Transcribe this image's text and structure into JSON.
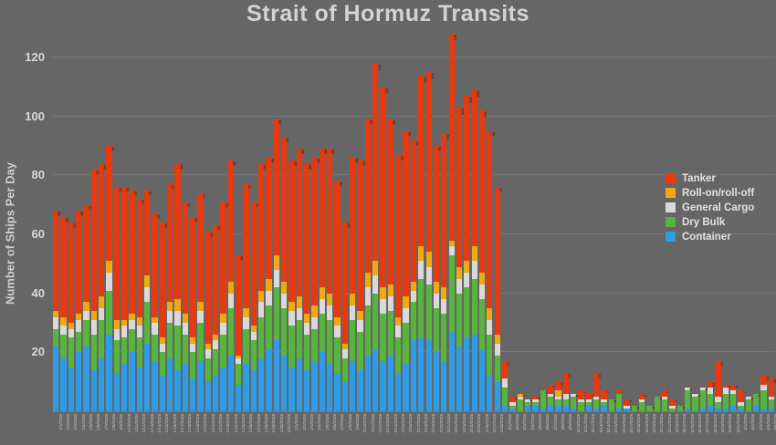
{
  "chart_data": {
    "type": "bar",
    "stacked": true,
    "title": "Strait of Hormuz Transits",
    "xlabel": "",
    "ylabel": "Number of Ships Per Day",
    "yticks": [
      20,
      40,
      60,
      80,
      100,
      120
    ],
    "ylim": [
      0,
      130
    ],
    "grid": "horizontal",
    "legend": {
      "position": "right",
      "items": [
        "Tanker",
        "Roll-on/roll-off",
        "General Cargo",
        "Dry Bulk",
        "Container"
      ]
    },
    "x": [
      "1/1/2026",
      "1/2/2026",
      "1/3/2026",
      "1/4/2026",
      "1/5/2026",
      "1/6/2026",
      "1/7/2026",
      "1/8/2026",
      "1/9/2026",
      "1/10/2026",
      "1/11/2026",
      "1/12/2026",
      "1/13/2026",
      "1/14/2026",
      "1/15/2026",
      "1/16/2026",
      "1/17/2026",
      "1/18/2026",
      "1/19/2026",
      "1/20/2026",
      "1/21/2026",
      "1/22/2026",
      "1/23/2026",
      "1/24/2026",
      "1/25/2026",
      "1/26/2026",
      "1/27/2026",
      "1/28/2026",
      "1/29/2026",
      "1/30/2026",
      "1/31/2026",
      "2/1/2026",
      "2/2/2026",
      "2/3/2026",
      "2/4/2026",
      "2/5/2026",
      "2/6/2026",
      "2/7/2026",
      "2/8/2026",
      "2/9/2026",
      "2/10/2026",
      "2/11/2026",
      "2/12/2026",
      "2/13/2026",
      "2/14/2026",
      "2/15/2026",
      "2/16/2026",
      "2/17/2026",
      "2/18/2026",
      "2/19/2026",
      "2/20/2026",
      "2/21/2026",
      "2/22/2026",
      "2/23/2026",
      "2/24/2026",
      "2/25/2026",
      "2/26/2026",
      "2/27/2026",
      "2/28/2026",
      "3/1/2026",
      "3/2/2026",
      "3/3/2026",
      "3/4/2026",
      "3/5/2026",
      "3/6/2026",
      "3/7/2026",
      "3/8/2026",
      "3/9/2026",
      "3/10/2026",
      "3/11/2026",
      "3/12/2026",
      "3/13/2026",
      "3/14/2026",
      "3/15/2026",
      "3/16/2026",
      "3/17/2026",
      "3/18/2026",
      "3/19/2026",
      "3/20/2026",
      "3/21/2026",
      "3/22/2026",
      "3/23/2026",
      "3/24/2026",
      "3/25/2026",
      "3/26/2026",
      "3/27/2026",
      "3/28/2026",
      "3/29/2026",
      "3/30/2026",
      "3/31/2026",
      "4/1/2026",
      "4/2/2026",
      "4/3/2026",
      "4/4/2026",
      "4/5/2026"
    ],
    "series": [
      {
        "name": "Container",
        "color": "#2E9CE6",
        "values": [
          22,
          18,
          15,
          20,
          22,
          14,
          18,
          26,
          13,
          16,
          20,
          15,
          23,
          17,
          12,
          18,
          14,
          16,
          11,
          17,
          10,
          12,
          15,
          19,
          9,
          16,
          14,
          18,
          21,
          24,
          19,
          15,
          18,
          14,
          17,
          20,
          16,
          13,
          10,
          17,
          14,
          19,
          21,
          17,
          19,
          13,
          16,
          24,
          25,
          24,
          20,
          17,
          27,
          22,
          25,
          26,
          21,
          12,
          10,
          2,
          1,
          0,
          2,
          2,
          1,
          2,
          2,
          2,
          1,
          0,
          2,
          1,
          2,
          0,
          1,
          1,
          0,
          0,
          0,
          0,
          0,
          0,
          0,
          1,
          0,
          1,
          2,
          1,
          1,
          2,
          1,
          0,
          2,
          1,
          1
        ]
      },
      {
        "name": "Dry Bulk",
        "color": "#57B43C",
        "values": [
          6,
          8,
          10,
          7,
          9,
          12,
          13,
          15,
          11,
          9,
          8,
          10,
          14,
          9,
          8,
          12,
          15,
          10,
          9,
          13,
          8,
          9,
          11,
          16,
          7,
          12,
          10,
          14,
          15,
          18,
          16,
          14,
          13,
          12,
          11,
          13,
          15,
          12,
          8,
          14,
          13,
          17,
          19,
          16,
          15,
          12,
          14,
          13,
          20,
          19,
          15,
          16,
          26,
          18,
          17,
          19,
          17,
          14,
          9,
          6,
          1,
          4,
          1,
          1,
          6,
          3,
          2,
          2,
          4,
          3,
          1,
          3,
          1,
          4,
          5,
          0,
          2,
          3,
          2,
          5,
          4,
          1,
          2,
          6,
          5,
          6,
          4,
          2,
          5,
          4,
          1,
          4,
          4,
          6,
          3
        ]
      },
      {
        "name": "General Cargo",
        "color": "#D9D9D9",
        "values": [
          4,
          3,
          3,
          4,
          3,
          5,
          4,
          6,
          4,
          4,
          3,
          4,
          5,
          4,
          3,
          4,
          5,
          4,
          3,
          4,
          3,
          3,
          4,
          5,
          2,
          4,
          3,
          5,
          5,
          6,
          5,
          5,
          4,
          4,
          4,
          5,
          5,
          4,
          3,
          5,
          4,
          6,
          6,
          5,
          5,
          4,
          5,
          4,
          6,
          6,
          5,
          5,
          3,
          5,
          5,
          6,
          5,
          5,
          4,
          3,
          1,
          1,
          1,
          1,
          0,
          1,
          1,
          2,
          1,
          1,
          1,
          1,
          1,
          0,
          0,
          1,
          0,
          1,
          0,
          0,
          1,
          1,
          0,
          1,
          1,
          1,
          2,
          2,
          2,
          1,
          1,
          1,
          0,
          2,
          1
        ]
      },
      {
        "name": "Roll-on/roll-off",
        "color": "#F0A813",
        "values": [
          2,
          3,
          2,
          2,
          3,
          3,
          4,
          4,
          3,
          2,
          2,
          3,
          4,
          2,
          2,
          3,
          4,
          3,
          2,
          3,
          2,
          2,
          3,
          4,
          1,
          3,
          2,
          4,
          4,
          5,
          4,
          3,
          4,
          3,
          4,
          4,
          4,
          3,
          2,
          4,
          3,
          5,
          5,
          4,
          4,
          3,
          4,
          3,
          5,
          5,
          4,
          4,
          2,
          4,
          4,
          5,
          4,
          4,
          3,
          0,
          0,
          1,
          0,
          0,
          0,
          0,
          2,
          0,
          0,
          0,
          0,
          0,
          0,
          0,
          0,
          0,
          0,
          0,
          0,
          0,
          0,
          0,
          0,
          0,
          0,
          0,
          0,
          0,
          0,
          0,
          0,
          0,
          0,
          0,
          0
        ]
      },
      {
        "name": "Tanker",
        "color": "#E8380D",
        "values": [
          34,
          34,
          34,
          35,
          33,
          48,
          45,
          39,
          45,
          45,
          42,
          40,
          29,
          35,
          39,
          40,
          46,
          38,
          41,
          37,
          38,
          37,
          38,
          41,
          34,
          42,
          42,
          43,
          41,
          46,
          49,
          48,
          50,
          51,
          50,
          47,
          49,
          46,
          41,
          46,
          51,
          52,
          67,
          68,
          56,
          55,
          56,
          48,
          58,
          61,
          46,
          52,
          70,
          54,
          56,
          53,
          55,
          60,
          50,
          6,
          2,
          0,
          0,
          1,
          0,
          3,
          3,
          7,
          0,
          3,
          2,
          8,
          3,
          0,
          1,
          2,
          0,
          2,
          0,
          0,
          2,
          2,
          0,
          0,
          0,
          0,
          2,
          12,
          1,
          2,
          4,
          0,
          0,
          3,
          6
        ]
      }
    ]
  }
}
